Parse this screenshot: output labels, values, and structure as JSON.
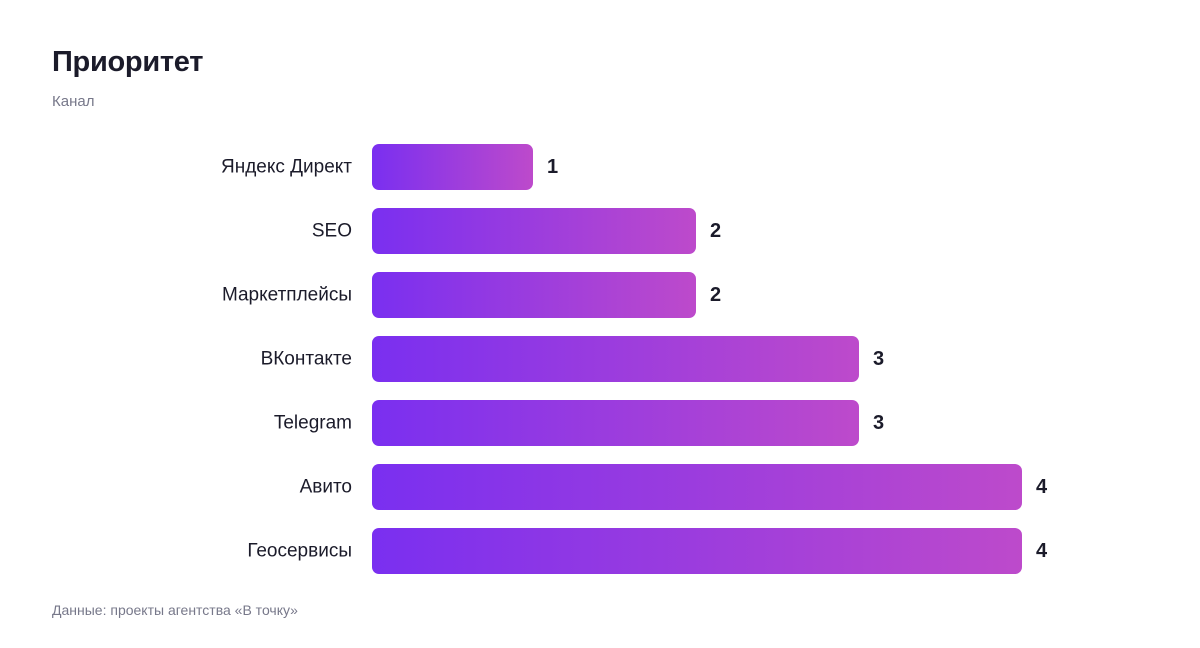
{
  "page": {
    "title": "Приоритет",
    "subtitle": "Канал",
    "source": "Данные: проекты агентства «В точку»"
  },
  "colors": {
    "bar_start": "#7a2ff0",
    "bar_end": "#bd4acb"
  },
  "chart_data": {
    "type": "bar",
    "orientation": "horizontal",
    "title": "Приоритет",
    "subtitle": "Канал",
    "categories": [
      "Яндекс Директ",
      "SEO",
      "Маркетплейсы",
      "ВКонтакте",
      "Telegram",
      "Авито",
      "Геосервисы"
    ],
    "values": [
      1,
      2,
      2,
      3,
      3,
      4,
      4
    ],
    "xlim": [
      0,
      4
    ],
    "grid": false,
    "legend": "none",
    "data_labels": true
  }
}
